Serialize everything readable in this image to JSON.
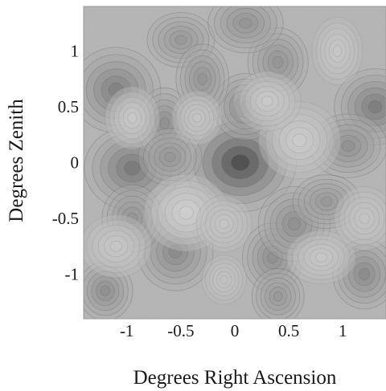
{
  "chart_data": {
    "type": "heatmap",
    "xlabel": "Degrees Right Ascension",
    "ylabel": "Degrees Zenith",
    "xlim": [
      -1.4,
      1.4
    ],
    "ylim": [
      -1.4,
      1.4
    ],
    "x_ticks": [
      {
        "value": -1,
        "label": "-1"
      },
      {
        "value": -0.5,
        "label": "-0.5"
      },
      {
        "value": 0,
        "label": "0"
      },
      {
        "value": 0.5,
        "label": "0.5"
      },
      {
        "value": 1,
        "label": "1"
      }
    ],
    "y_ticks": [
      {
        "value": 1,
        "label": "1"
      },
      {
        "value": 0.5,
        "label": "0.5"
      },
      {
        "value": 0,
        "label": "0"
      },
      {
        "value": -0.5,
        "label": "-0.5"
      },
      {
        "value": -1,
        "label": "-1"
      }
    ],
    "colormap": "grayscale contour (dark = high intensity)",
    "features": [
      {
        "x": 0.05,
        "y": 0.0,
        "intensity": 1.0
      },
      {
        "x": -0.95,
        "y": -0.05,
        "intensity": 0.55
      },
      {
        "x": -1.1,
        "y": 0.65,
        "intensity": 0.45
      },
      {
        "x": 1.3,
        "y": 0.5,
        "intensity": 0.5
      },
      {
        "x": 0.1,
        "y": 0.5,
        "intensity": 0.42
      },
      {
        "x": -0.65,
        "y": 0.35,
        "intensity": 0.3
      },
      {
        "x": 0.4,
        "y": 0.9,
        "intensity": 0.25
      },
      {
        "x": -0.5,
        "y": 1.1,
        "intensity": 0.2
      },
      {
        "x": 0.1,
        "y": 1.25,
        "intensity": 0.25
      },
      {
        "x": -0.55,
        "y": -0.8,
        "intensity": 0.35
      },
      {
        "x": 0.35,
        "y": -0.85,
        "intensity": 0.3
      },
      {
        "x": -1.2,
        "y": -1.15,
        "intensity": 0.3
      },
      {
        "x": 1.2,
        "y": -1.0,
        "intensity": 0.35
      },
      {
        "x": 0.55,
        "y": -0.55,
        "intensity": 0.3
      },
      {
        "x": 1.05,
        "y": 0.15,
        "intensity": 0.28
      },
      {
        "x": 0.85,
        "y": -0.35,
        "intensity": 0.2
      },
      {
        "x": -0.95,
        "y": -0.5,
        "intensity": 0.25
      },
      {
        "x": -0.3,
        "y": 0.75,
        "intensity": 0.25
      },
      {
        "x": 0.4,
        "y": -1.2,
        "intensity": 0.2
      },
      {
        "x": -0.6,
        "y": 0.05,
        "intensity": 0.22
      },
      {
        "x": 0.6,
        "y": 0.2,
        "intensity": -0.35
      },
      {
        "x": -0.45,
        "y": -0.45,
        "intensity": -0.4
      },
      {
        "x": 0.3,
        "y": 0.55,
        "intensity": -0.3
      },
      {
        "x": -0.95,
        "y": 0.4,
        "intensity": -0.25
      },
      {
        "x": 0.95,
        "y": 1.0,
        "intensity": -0.2
      },
      {
        "x": -0.1,
        "y": -0.55,
        "intensity": -0.15
      },
      {
        "x": 0.8,
        "y": -0.85,
        "intensity": -0.2
      },
      {
        "x": -1.1,
        "y": -0.75,
        "intensity": -0.2
      },
      {
        "x": 1.2,
        "y": -0.5,
        "intensity": -0.15
      },
      {
        "x": -0.35,
        "y": 0.4,
        "intensity": -0.15
      },
      {
        "x": -0.1,
        "y": -1.05,
        "intensity": -0.1
      }
    ]
  }
}
